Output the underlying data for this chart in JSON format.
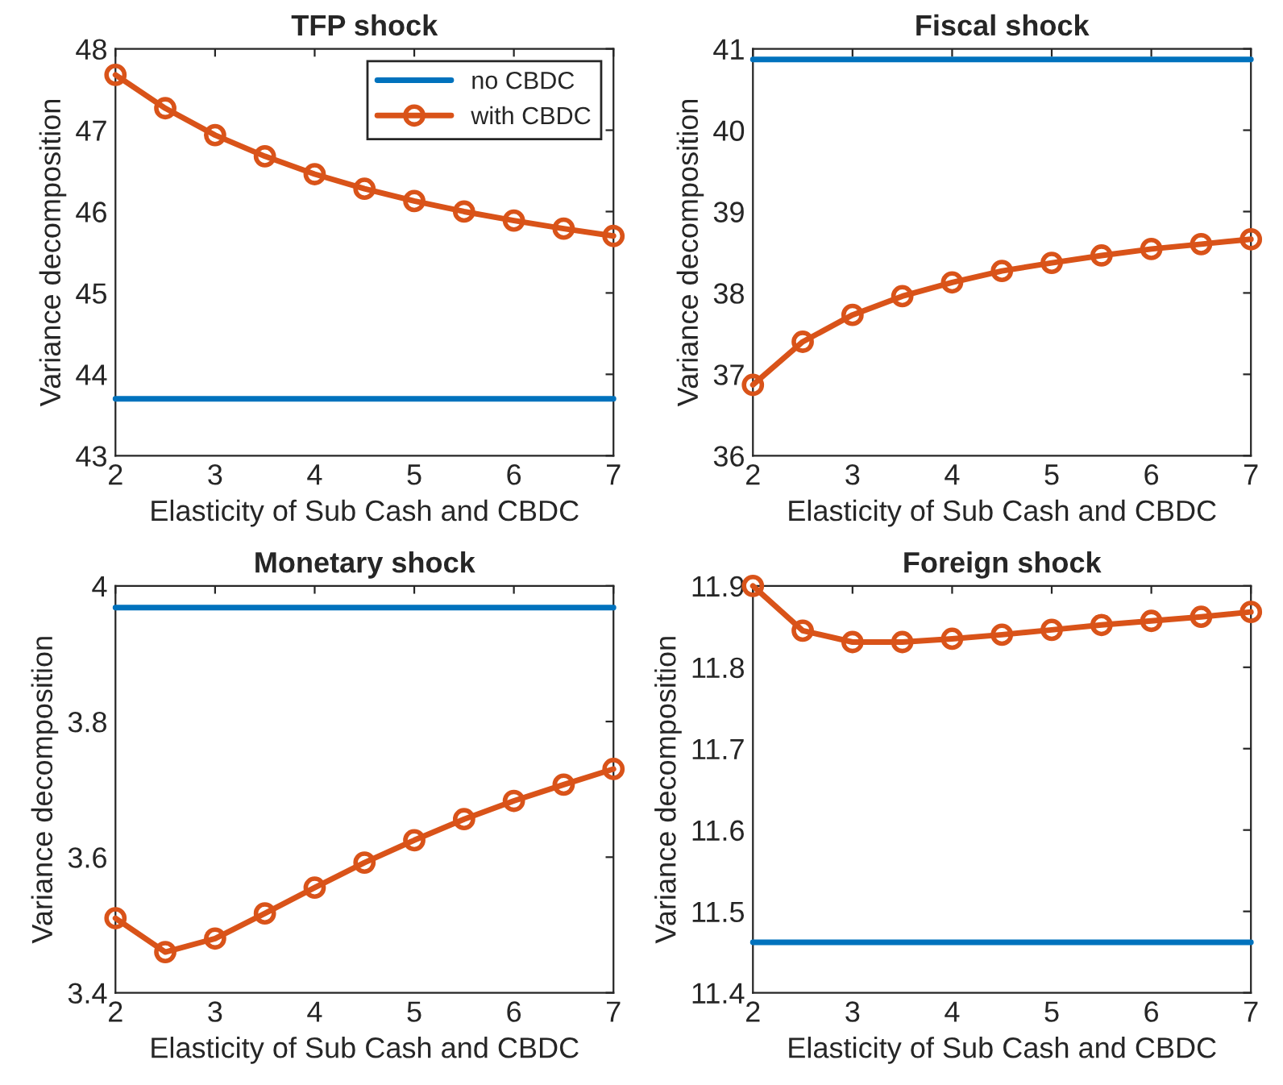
{
  "chart_data": [
    {
      "type": "line",
      "title": "TFP shock",
      "xlabel": "Elasticity of Sub Cash and CBDC",
      "ylabel": "Variance decomposition",
      "xlim": [
        2,
        7
      ],
      "xticks": [
        2,
        3,
        4,
        5,
        6,
        7
      ],
      "ylim": [
        43,
        48
      ],
      "yticks": [
        43,
        44,
        45,
        46,
        47,
        48
      ],
      "legend": "top right",
      "series": [
        {
          "name": "no CBDC",
          "color": "#0072bd",
          "marker": "none",
          "x": [
            2,
            7
          ],
          "values": [
            43.7,
            43.7
          ]
        },
        {
          "name": "with CBDC",
          "color": "#d95319",
          "marker": "circle",
          "x": [
            2,
            2.5,
            3,
            3.5,
            4,
            4.5,
            5,
            5.5,
            6,
            6.5,
            7
          ],
          "values": [
            47.68,
            47.27,
            46.94,
            46.68,
            46.46,
            46.28,
            46.13,
            46.0,
            45.89,
            45.79,
            45.7
          ]
        }
      ]
    },
    {
      "type": "line",
      "title": "Fiscal shock",
      "xlabel": "Elasticity of Sub Cash and CBDC",
      "ylabel": "Variance decomposition",
      "xlim": [
        2,
        7
      ],
      "xticks": [
        2,
        3,
        4,
        5,
        6,
        7
      ],
      "ylim": [
        36,
        41
      ],
      "yticks": [
        36,
        37,
        38,
        39,
        40,
        41
      ],
      "series": [
        {
          "color": "#0072bd",
          "marker": "none",
          "x": [
            2,
            7
          ],
          "values": [
            40.87,
            40.87
          ]
        },
        {
          "color": "#d95319",
          "marker": "circle",
          "x": [
            2,
            2.5,
            3,
            3.5,
            4,
            4.5,
            5,
            5.5,
            6,
            6.5,
            7
          ],
          "values": [
            36.87,
            37.4,
            37.73,
            37.96,
            38.13,
            38.27,
            38.37,
            38.46,
            38.54,
            38.6,
            38.66
          ]
        }
      ]
    },
    {
      "type": "line",
      "title": "Monetary shock",
      "xlabel": "Elasticity of Sub Cash and CBDC",
      "ylabel": "Variance decomposition",
      "xlim": [
        2,
        7
      ],
      "xticks": [
        2,
        3,
        4,
        5,
        6,
        7
      ],
      "ylim": [
        3.4,
        4
      ],
      "yticks": [
        {
          "value": 3.4,
          "label": "3.4"
        },
        {
          "value": 3.6,
          "label": "3.6"
        },
        {
          "value": 3.8,
          "label": "3.8"
        },
        4
      ],
      "series": [
        {
          "color": "#0072bd",
          "marker": "none",
          "x": [
            2,
            7
          ],
          "values": [
            3.968,
            3.968
          ]
        },
        {
          "color": "#d95319",
          "marker": "circle",
          "x": [
            2,
            2.5,
            3,
            3.5,
            4,
            4.5,
            5,
            5.5,
            6,
            6.5,
            7
          ],
          "values": [
            3.51,
            3.46,
            3.48,
            3.517,
            3.555,
            3.592,
            3.625,
            3.656,
            3.683,
            3.707,
            3.73
          ]
        }
      ]
    },
    {
      "type": "line",
      "title": "Foreign shock",
      "xlabel": "Elasticity of Sub Cash and CBDC",
      "ylabel": "Variance decomposition",
      "xlim": [
        2,
        7
      ],
      "xticks": [
        2,
        3,
        4,
        5,
        6,
        7
      ],
      "ylim": [
        11.4,
        11.9
      ],
      "yticks": [
        {
          "value": 11.4,
          "label": "11.4"
        },
        {
          "value": 11.5,
          "label": "11.5"
        },
        {
          "value": 11.6,
          "label": "11.6"
        },
        {
          "value": 11.7,
          "label": "11.7"
        },
        {
          "value": 11.8,
          "label": "11.8"
        },
        {
          "value": 11.9,
          "label": "11.9"
        }
      ],
      "series": [
        {
          "color": "#0072bd",
          "marker": "none",
          "x": [
            2,
            7
          ],
          "values": [
            11.462,
            11.462
          ]
        },
        {
          "color": "#d95319",
          "marker": "circle",
          "x": [
            2,
            2.5,
            3,
            3.5,
            4,
            4.5,
            5,
            5.5,
            6,
            6.5,
            7
          ],
          "values": [
            11.9,
            11.845,
            11.831,
            11.831,
            11.835,
            11.84,
            11.846,
            11.852,
            11.857,
            11.862,
            11.868
          ]
        }
      ]
    }
  ]
}
